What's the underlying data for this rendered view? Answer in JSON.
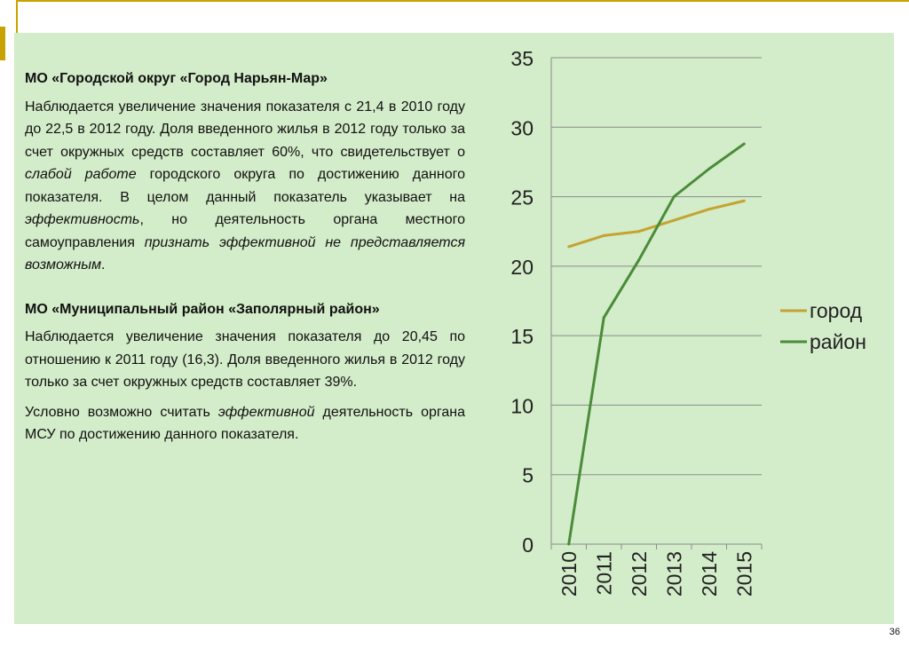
{
  "section1": {
    "heading": "МО «Городской округ «Город Нарьян-Мар»",
    "para_a": "Наблюдается увеличение значения показателя с 21,4 в 2010 году до 22,5 в 2012 году. Доля введенного жилья в 2012 году только за счет окружных средств составляет 60%, что свидетельствует о ",
    "para_em1": "слабой работе",
    "para_b": " городского округа по достижению данного показателя. В целом данный показатель указывает на ",
    "para_em2": "эффективность",
    "para_c": ", но деятельность органа местного самоуправления ",
    "para_em3": "признать эффективной не представляется возможным",
    "para_d": "."
  },
  "section2": {
    "heading": "МО «Муниципальный район «Заполярный район»",
    "para1": "Наблюдается увеличение значения показателя до 20,45 по отношению к 2011 году (16,3). Доля введенного жилья в 2012 году только за счет окружных средств составляет 39%.",
    "para2_a": "Условно возможно считать ",
    "para2_em": "эффективной",
    "para2_b": " деятельность органа МСУ по достижению данного показателя."
  },
  "page_number": "36",
  "chart_data": {
    "type": "line",
    "title": "",
    "xlabel": "",
    "ylabel": "",
    "categories": [
      "2010",
      "2011",
      "2012",
      "2013",
      "2014",
      "2015"
    ],
    "ylim": [
      0,
      35
    ],
    "yticks": [
      0,
      5,
      10,
      15,
      20,
      25,
      30,
      35
    ],
    "grid": true,
    "legend": "right",
    "series": [
      {
        "name": "город",
        "color": "#c5a332",
        "values": [
          21.4,
          22.2,
          22.5,
          23.3,
          24.1,
          24.7
        ]
      },
      {
        "name": "район",
        "color": "#4a8c3a",
        "values": [
          0,
          16.3,
          20.45,
          25.0,
          27.0,
          28.8
        ]
      }
    ]
  }
}
